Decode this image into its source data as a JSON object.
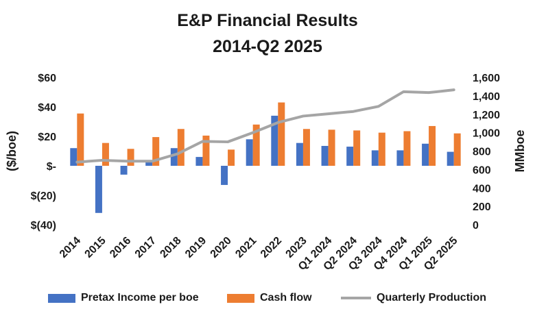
{
  "title_line1": "E&P Financial Results",
  "title_line2": "2014-Q2 2025",
  "colors": {
    "pretax": "#4472C4",
    "cashflow": "#ED7D31",
    "production": "#A5A5A5"
  },
  "chart_data": {
    "type": "bar",
    "categories": [
      "2014",
      "2015",
      "2016",
      "2017",
      "2018",
      "2019",
      "2020",
      "2021",
      "2022",
      "2023",
      "Q1 2024",
      "Q2 2024",
      "Q3 2024",
      "Q4 2024",
      "Q1 2025",
      "Q2 2025"
    ],
    "series": [
      {
        "name": "Pretax Income per boe",
        "type": "bar",
        "axis": "left",
        "values": [
          12,
          -32,
          -6,
          3,
          12,
          6,
          -13,
          18,
          34,
          15.5,
          13.5,
          13,
          10.5,
          10.5,
          15,
          9.5
        ]
      },
      {
        "name": "Cash flow",
        "type": "bar",
        "axis": "left",
        "values": [
          35.5,
          15.5,
          11.5,
          19.5,
          25,
          20.5,
          11,
          28,
          43,
          25,
          24.5,
          24,
          22.5,
          23.5,
          27,
          22
        ]
      },
      {
        "name": "Quarterly Production",
        "type": "line",
        "axis": "right",
        "values": [
          680,
          700,
          690,
          690,
          770,
          905,
          900,
          1000,
          1110,
          1180,
          1205,
          1230,
          1285,
          1445,
          1435,
          1465
        ]
      }
    ],
    "ylabel": "($/boe)",
    "y2label": "MMboe",
    "ylim": [
      -40,
      60
    ],
    "y2lim": [
      0,
      1600
    ],
    "yticks": [
      "$60",
      "$40",
      "$20",
      "$-",
      "$(20)",
      "$(40)"
    ],
    "y2ticks": [
      "1,600",
      "1,400",
      "1,200",
      "1,000",
      "800",
      "600",
      "400",
      "200",
      "0"
    ],
    "legend_position": "bottom",
    "grid": false
  }
}
